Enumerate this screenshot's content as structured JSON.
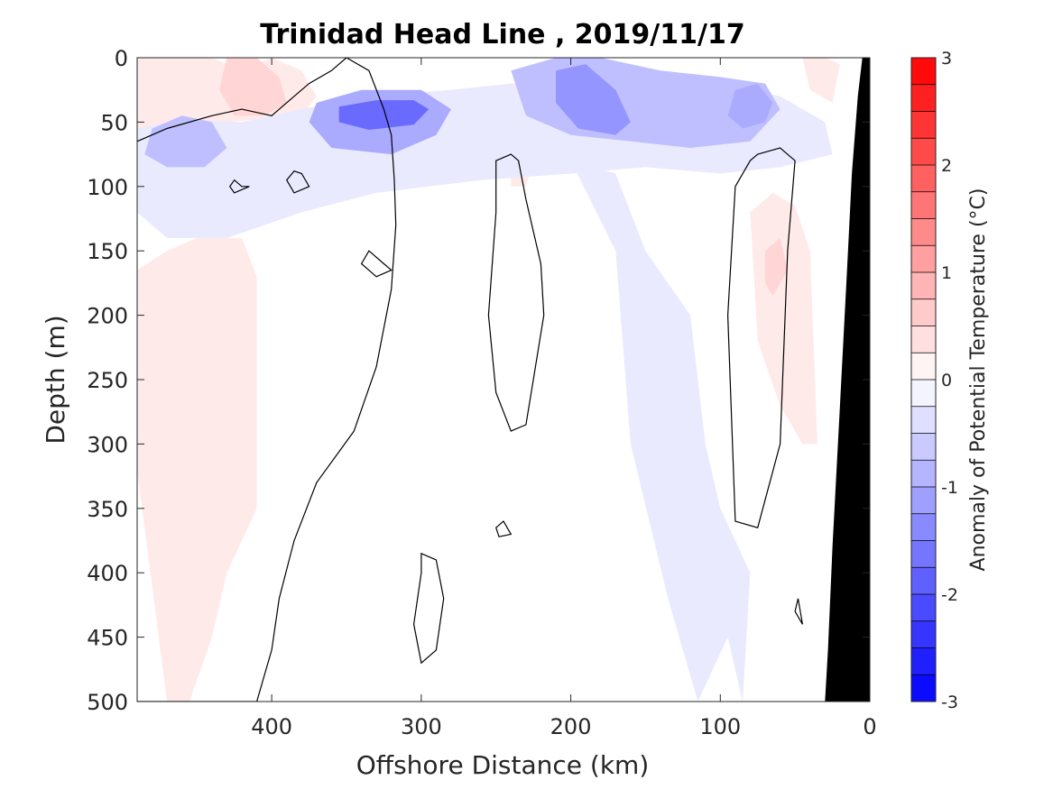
{
  "chart_data": {
    "type": "heatmap",
    "title": "Trinidad Head Line , 2019/11/17",
    "xlabel": "Offshore Distance (km)",
    "ylabel": "Depth (m)",
    "xlim": [
      490,
      0
    ],
    "ylim": [
      0,
      500
    ],
    "x_ticks": [
      "400",
      "300",
      "200",
      "100",
      "0"
    ],
    "x_tick_values": [
      400,
      300,
      200,
      100,
      0
    ],
    "y_ticks": [
      "0",
      "50",
      "100",
      "150",
      "200",
      "250",
      "300",
      "350",
      "400",
      "450",
      "500"
    ],
    "y_tick_values": [
      0,
      50,
      100,
      150,
      200,
      250,
      300,
      350,
      400,
      450,
      500
    ],
    "y_reversed": true,
    "colorbar": {
      "label": "Anomaly of Potential Temperature (°C)",
      "range": [
        -3,
        3
      ],
      "step": 0.25,
      "ticks": [
        "3",
        "2",
        "1",
        "0",
        "-1",
        "-2",
        "-3"
      ],
      "tick_values": [
        3,
        2,
        1,
        0,
        -1,
        -2,
        -3
      ],
      "cmap_low": "#0000ff",
      "cmap_mid": "#ffffff",
      "cmap_high": "#ff0000"
    },
    "contour_levels": [
      0
    ],
    "bathymetry_color": "#000000",
    "anomaly_regions": [
      {
        "value": 0.6,
        "x": [
          490,
          465,
          455,
          460,
          480,
          490
        ],
        "depth": [
          0,
          0,
          20,
          45,
          55,
          45
        ]
      },
      {
        "value": 0.25,
        "x": [
          490,
          440,
          420,
          400,
          380,
          370,
          380,
          430,
          470,
          490
        ],
        "depth": [
          0,
          0,
          10,
          0,
          10,
          30,
          45,
          50,
          50,
          60
        ]
      },
      {
        "value": 0.5,
        "x": [
          430,
          410,
          395,
          390,
          405,
          425,
          435
        ],
        "depth": [
          0,
          0,
          15,
          35,
          45,
          45,
          25
        ]
      },
      {
        "value": 0.25,
        "x": [
          490,
          470,
          450,
          420,
          410,
          410,
          430,
          440,
          455,
          470,
          490
        ],
        "depth": [
          165,
          150,
          140,
          140,
          170,
          350,
          400,
          450,
          500,
          500,
          320
        ]
      },
      {
        "value": 0.25,
        "x": [
          80,
          65,
          50,
          40,
          35,
          45,
          60,
          75
        ],
        "depth": [
          120,
          105,
          115,
          150,
          300,
          300,
          270,
          220
        ]
      },
      {
        "value": 0.5,
        "x": [
          70,
          60,
          55,
          65,
          70
        ],
        "depth": [
          150,
          140,
          165,
          185,
          175
        ]
      },
      {
        "value": 0.25,
        "x": [
          45,
          30,
          20,
          25,
          40
        ],
        "depth": [
          0,
          0,
          5,
          35,
          25
        ]
      },
      {
        "value": 0.25,
        "x": [
          240,
          225,
          230,
          240
        ],
        "depth": [
          80,
          80,
          100,
          100
        ]
      },
      {
        "value": -0.25,
        "x": [
          490,
          460,
          420,
          380,
          340,
          280,
          240,
          200,
          150,
          100,
          60,
          30,
          25,
          60,
          100,
          150,
          200,
          260,
          330,
          380,
          430,
          470,
          490
        ],
        "depth": [
          55,
          48,
          50,
          40,
          30,
          25,
          20,
          20,
          15,
          20,
          30,
          50,
          75,
          85,
          90,
          85,
          90,
          95,
          105,
          120,
          140,
          140,
          120
        ]
      },
      {
        "value": -0.25,
        "x": [
          200,
          170,
          150,
          120,
          110,
          100,
          80,
          85,
          95,
          115,
          135,
          160,
          170
        ],
        "depth": [
          80,
          90,
          150,
          200,
          300,
          350,
          400,
          500,
          450,
          500,
          420,
          300,
          150
        ]
      },
      {
        "value": -0.75,
        "x": [
          480,
          460,
          440,
          430,
          445,
          470,
          485
        ],
        "depth": [
          55,
          45,
          50,
          70,
          85,
          85,
          75
        ]
      },
      {
        "value": -1.0,
        "x": [
          370,
          340,
          300,
          280,
          290,
          320,
          360,
          375
        ],
        "depth": [
          35,
          25,
          25,
          40,
          60,
          75,
          70,
          50
        ]
      },
      {
        "value": -1.75,
        "x": [
          355,
          330,
          305,
          295,
          305,
          335,
          355
        ],
        "depth": [
          38,
          33,
          33,
          40,
          52,
          56,
          50
        ]
      },
      {
        "value": -0.75,
        "x": [
          240,
          210,
          180,
          140,
          100,
          70,
          60,
          80,
          120,
          160,
          200,
          230
        ],
        "depth": [
          10,
          0,
          0,
          10,
          15,
          20,
          40,
          65,
          70,
          65,
          60,
          45
        ]
      },
      {
        "value": -1.25,
        "x": [
          210,
          190,
          170,
          160,
          170,
          195,
          210
        ],
        "depth": [
          10,
          5,
          25,
          50,
          60,
          55,
          35
        ]
      },
      {
        "value": -1.0,
        "x": [
          90,
          75,
          65,
          70,
          85,
          95
        ],
        "depth": [
          25,
          20,
          35,
          50,
          55,
          45
        ]
      }
    ],
    "zero_contours": [
      {
        "x": [
          490,
          470,
          440,
          420,
          400,
          385,
          375,
          360,
          350,
          335,
          325,
          320,
          318,
          317,
          320,
          330,
          345,
          370,
          385,
          395,
          400,
          410,
          430,
          460,
          490
        ],
        "depth": [
          65,
          55,
          45,
          40,
          45,
          30,
          20,
          10,
          0,
          10,
          40,
          60,
          95,
          130,
          180,
          240,
          290,
          330,
          375,
          420,
          460,
          500,
          500,
          500,
          500
        ],
        "closed": false
      },
      {
        "x": [
          250,
          240,
          235,
          230,
          220,
          218,
          225,
          230,
          240,
          250,
          255,
          250
        ],
        "depth": [
          80,
          75,
          80,
          110,
          160,
          200,
          250,
          285,
          290,
          260,
          200,
          120
        ],
        "closed": true
      },
      {
        "x": [
          300,
          290,
          285,
          290,
          300,
          305,
          300
        ],
        "depth": [
          385,
          390,
          420,
          460,
          470,
          440,
          400
        ],
        "closed": true
      },
      {
        "x": [
          75,
          60,
          50,
          55,
          60,
          75,
          90,
          95,
          90,
          80
        ],
        "depth": [
          75,
          70,
          80,
          150,
          300,
          365,
          360,
          200,
          100,
          80
        ],
        "closed": true
      },
      {
        "x": [
          48,
          45,
          50,
          48
        ],
        "depth": [
          420,
          440,
          430,
          420
        ],
        "closed": true
      },
      {
        "x": [
          250,
          245,
          240,
          248,
          250
        ],
        "depth": [
          365,
          360,
          370,
          372,
          365
        ],
        "closed": true
      },
      {
        "x": [
          425,
          420,
          415,
          425,
          428,
          425
        ],
        "depth": [
          95,
          100,
          100,
          105,
          100,
          95
        ],
        "closed": true
      },
      {
        "x": [
          385,
          380,
          375,
          385,
          390,
          385
        ],
        "depth": [
          88,
          90,
          100,
          105,
          95,
          88
        ],
        "closed": true
      },
      {
        "x": [
          335,
          325,
          320,
          330,
          340,
          335
        ],
        "depth": [
          150,
          160,
          165,
          170,
          160,
          150
        ],
        "closed": true
      }
    ],
    "seafloor": {
      "x": [
        0,
        5,
        8,
        12,
        15,
        20,
        25,
        28,
        30,
        0
      ],
      "depth": [
        0,
        0,
        30,
        90,
        160,
        270,
        380,
        460,
        500,
        500
      ]
    }
  }
}
